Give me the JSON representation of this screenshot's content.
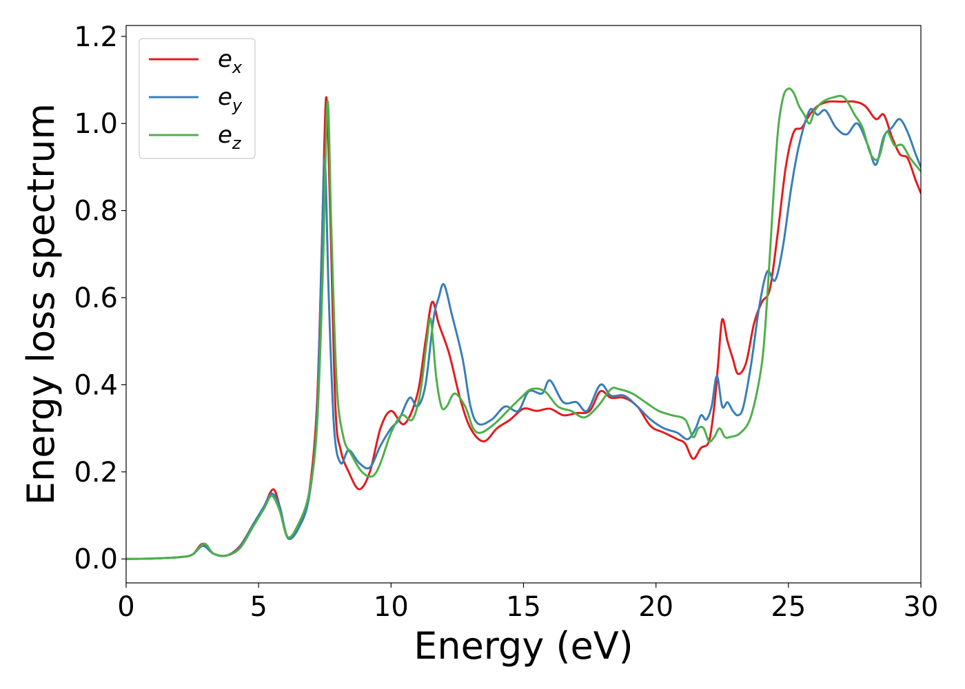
{
  "chart_data": {
    "type": "line",
    "title": "",
    "xlabel": "Energy (eV)",
    "ylabel": "Energy loss spectrum",
    "xlim": [
      0,
      30
    ],
    "ylim": [
      -0.055,
      1.225
    ],
    "xticks": [
      0,
      5,
      10,
      15,
      20,
      25,
      30
    ],
    "xtick_labels": [
      "0",
      "5",
      "10",
      "15",
      "20",
      "25",
      "30"
    ],
    "yticks": [
      0.0,
      0.2,
      0.4,
      0.6,
      0.8,
      1.0,
      1.2
    ],
    "ytick_labels": [
      "0.0",
      "0.2",
      "0.4",
      "0.6",
      "0.8",
      "1.0",
      "1.2"
    ],
    "grid": false,
    "legend_position": "top-left",
    "series": [
      {
        "name": "e_x",
        "legend_main": "e",
        "legend_sub": "x",
        "color": "#e41a1c",
        "x": [
          0,
          1,
          2,
          2.5,
          2.9,
          3.3,
          3.8,
          4.3,
          4.8,
          5.2,
          5.55,
          5.8,
          6.1,
          6.5,
          6.9,
          7.2,
          7.4,
          7.55,
          7.7,
          7.9,
          8.1,
          8.4,
          8.8,
          9.2,
          9.6,
          10.0,
          10.5,
          11.0,
          11.3,
          11.55,
          11.8,
          12.2,
          12.6,
          13.0,
          13.5,
          14.0,
          14.5,
          15.0,
          15.5,
          16.0,
          16.5,
          17.0,
          17.5,
          17.9,
          18.3,
          18.8,
          19.3,
          19.8,
          20.3,
          20.8,
          21.1,
          21.4,
          21.7,
          22.0,
          22.2,
          22.35,
          22.5,
          22.7,
          22.9,
          23.1,
          23.4,
          23.7,
          24.0,
          24.3,
          24.6,
          24.9,
          25.2,
          25.5,
          25.8,
          26.1,
          26.5,
          27.0,
          27.5,
          27.9,
          28.3,
          28.6,
          28.9,
          29.2,
          29.5,
          29.8,
          30
        ],
        "y": [
          0.0,
          0.001,
          0.004,
          0.01,
          0.035,
          0.012,
          0.008,
          0.03,
          0.08,
          0.12,
          0.16,
          0.12,
          0.05,
          0.07,
          0.15,
          0.35,
          0.75,
          1.06,
          0.8,
          0.35,
          0.25,
          0.2,
          0.16,
          0.2,
          0.3,
          0.34,
          0.31,
          0.38,
          0.5,
          0.59,
          0.54,
          0.47,
          0.37,
          0.3,
          0.27,
          0.3,
          0.32,
          0.345,
          0.34,
          0.345,
          0.33,
          0.335,
          0.34,
          0.385,
          0.37,
          0.37,
          0.35,
          0.305,
          0.29,
          0.275,
          0.265,
          0.23,
          0.255,
          0.27,
          0.35,
          0.45,
          0.55,
          0.5,
          0.46,
          0.425,
          0.45,
          0.54,
          0.59,
          0.62,
          0.75,
          0.9,
          0.98,
          0.99,
          1.02,
          1.04,
          1.05,
          1.05,
          1.05,
          1.04,
          1.01,
          1.02,
          0.97,
          0.93,
          0.92,
          0.87,
          0.84
        ]
      },
      {
        "name": "e_y",
        "legend_main": "e",
        "legend_sub": "y",
        "color": "#377eb8",
        "x": [
          0,
          1,
          2,
          2.5,
          2.9,
          3.3,
          3.8,
          4.3,
          4.8,
          5.2,
          5.5,
          5.8,
          6.1,
          6.5,
          6.9,
          7.2,
          7.38,
          7.5,
          7.65,
          7.85,
          8.1,
          8.4,
          8.8,
          9.2,
          9.6,
          10.0,
          10.3,
          10.7,
          11.0,
          11.3,
          11.6,
          11.8,
          12.0,
          12.3,
          12.7,
          13.0,
          13.3,
          13.8,
          14.3,
          14.8,
          15.2,
          15.7,
          16.0,
          16.5,
          17.0,
          17.4,
          17.9,
          18.3,
          18.8,
          19.3,
          19.8,
          20.3,
          20.8,
          21.2,
          21.5,
          21.7,
          21.9,
          22.1,
          22.3,
          22.5,
          22.7,
          22.9,
          23.1,
          23.3,
          23.6,
          23.9,
          24.2,
          24.5,
          24.8,
          25.1,
          25.4,
          25.8,
          26.1,
          26.4,
          26.8,
          27.2,
          27.6,
          28.0,
          28.3,
          28.6,
          28.9,
          29.2,
          29.5,
          29.8,
          30
        ],
        "y": [
          0.0,
          0.001,
          0.004,
          0.01,
          0.03,
          0.012,
          0.008,
          0.028,
          0.08,
          0.12,
          0.15,
          0.12,
          0.048,
          0.07,
          0.14,
          0.32,
          0.7,
          0.92,
          0.6,
          0.3,
          0.22,
          0.25,
          0.22,
          0.21,
          0.26,
          0.3,
          0.32,
          0.37,
          0.35,
          0.4,
          0.55,
          0.6,
          0.63,
          0.56,
          0.46,
          0.35,
          0.31,
          0.32,
          0.35,
          0.34,
          0.385,
          0.38,
          0.41,
          0.36,
          0.36,
          0.34,
          0.4,
          0.375,
          0.375,
          0.35,
          0.32,
          0.3,
          0.29,
          0.275,
          0.3,
          0.33,
          0.32,
          0.35,
          0.42,
          0.35,
          0.36,
          0.34,
          0.33,
          0.35,
          0.45,
          0.58,
          0.66,
          0.64,
          0.72,
          0.85,
          0.95,
          1.03,
          1.02,
          1.03,
          0.99,
          0.975,
          1.0,
          0.95,
          0.905,
          0.97,
          0.99,
          1.01,
          0.98,
          0.93,
          0.9
        ]
      },
      {
        "name": "e_z",
        "legend_main": "e",
        "legend_sub": "z",
        "color": "#4daf4a",
        "x": [
          0,
          1,
          2,
          2.5,
          2.95,
          3.3,
          3.8,
          4.3,
          4.8,
          5.2,
          5.5,
          5.8,
          6.1,
          6.5,
          6.9,
          7.2,
          7.42,
          7.6,
          7.75,
          7.95,
          8.2,
          8.5,
          8.9,
          9.3,
          9.6,
          10.0,
          10.4,
          10.8,
          11.1,
          11.35,
          11.5,
          11.7,
          11.9,
          12.1,
          12.4,
          12.8,
          13.1,
          13.4,
          13.9,
          14.4,
          14.9,
          15.3,
          15.8,
          16.3,
          16.8,
          17.3,
          17.8,
          18.3,
          18.6,
          19.1,
          19.6,
          20.1,
          20.6,
          21.1,
          21.4,
          21.6,
          21.8,
          22.0,
          22.2,
          22.4,
          22.6,
          22.8,
          23.2,
          23.6,
          24.0,
          24.2,
          24.4,
          24.6,
          24.8,
          25.0,
          25.2,
          25.4,
          25.6,
          25.8,
          26.0,
          26.3,
          26.7,
          27.1,
          27.5,
          27.8,
          28.1,
          28.4,
          28.7,
          29.0,
          29.3,
          29.6,
          30
        ],
        "y": [
          0.0,
          0.001,
          0.004,
          0.01,
          0.035,
          0.012,
          0.008,
          0.025,
          0.075,
          0.115,
          0.145,
          0.11,
          0.05,
          0.08,
          0.15,
          0.3,
          0.65,
          1.05,
          0.75,
          0.4,
          0.28,
          0.24,
          0.2,
          0.19,
          0.22,
          0.29,
          0.33,
          0.32,
          0.38,
          0.5,
          0.55,
          0.42,
          0.35,
          0.35,
          0.38,
          0.35,
          0.3,
          0.29,
          0.31,
          0.34,
          0.37,
          0.39,
          0.385,
          0.35,
          0.34,
          0.325,
          0.35,
          0.39,
          0.39,
          0.38,
          0.36,
          0.34,
          0.33,
          0.32,
          0.28,
          0.3,
          0.3,
          0.27,
          0.28,
          0.3,
          0.28,
          0.28,
          0.29,
          0.33,
          0.45,
          0.6,
          0.8,
          0.98,
          1.06,
          1.08,
          1.07,
          1.04,
          1.02,
          1.0,
          1.03,
          1.05,
          1.06,
          1.06,
          1.02,
          0.99,
          0.93,
          0.92,
          0.98,
          0.95,
          0.95,
          0.92,
          0.89
        ]
      }
    ]
  }
}
